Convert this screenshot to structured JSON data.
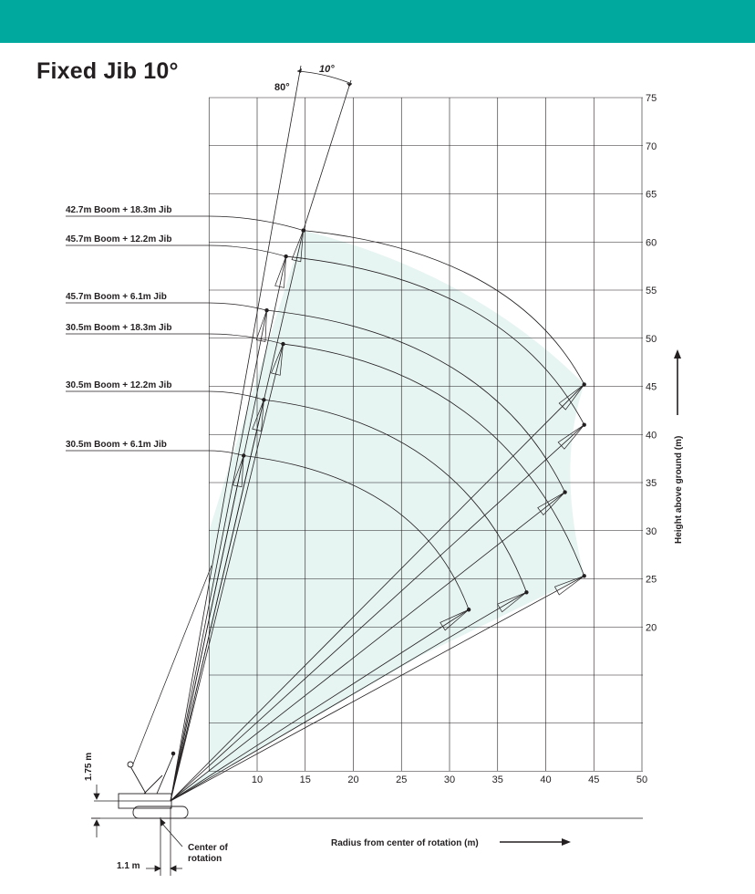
{
  "header": {
    "bar_color": "#00a99d"
  },
  "title": "Fixed Jib 10°",
  "annotations": {
    "angle_boom": "80°",
    "angle_jib": "10°"
  },
  "colors": {
    "envelope_fill": "#e6f4f2",
    "line": "#231f20",
    "grid": "#231f20",
    "accent": "#00a99d"
  },
  "chart_data": {
    "type": "diagram",
    "xlabel": "Radius from center of rotation (m)",
    "ylabel": "Height above ground (m)",
    "x_ticks": [
      10,
      15,
      20,
      25,
      30,
      35,
      40,
      45,
      50
    ],
    "y_ticks": [
      20,
      25,
      30,
      35,
      40,
      45,
      50,
      55,
      60,
      65,
      70,
      75
    ],
    "boom_angle_deg": 80,
    "jib_offset_deg": 10,
    "configurations": [
      {
        "label": "42.7m  Boom + 18.3m Jib",
        "tip_min_radius": [
          14.8,
          61.2
        ],
        "tip_max_radius": [
          44.0,
          45.2
        ]
      },
      {
        "label": "45.7m  Boom + 12.2m Jib",
        "tip_min_radius": [
          13.0,
          58.5
        ],
        "tip_max_radius": [
          44.0,
          41.0
        ]
      },
      {
        "label": "45.7m  Boom + 6.1m Jib",
        "tip_min_radius": [
          11.0,
          52.9
        ],
        "tip_max_radius": [
          42.0,
          34.0
        ]
      },
      {
        "label": "30.5m  Boom + 18.3m Jib",
        "tip_min_radius": [
          12.7,
          49.4
        ],
        "tip_max_radius": [
          44.0,
          25.3
        ]
      },
      {
        "label": "30.5m  Boom + 12.2m Jib",
        "tip_min_radius": [
          10.7,
          43.6
        ],
        "tip_max_radius": [
          38.0,
          23.6
        ]
      },
      {
        "label": "30.5m  Boom + 6.1m Jib",
        "tip_min_radius": [
          8.6,
          37.8
        ],
        "tip_max_radius": [
          32.0,
          21.8
        ]
      }
    ],
    "dimensions": {
      "pivot_height": "1.75 m",
      "pivot_offset": "1.1 m",
      "center_label": "Center of rotation"
    },
    "grid": true
  }
}
